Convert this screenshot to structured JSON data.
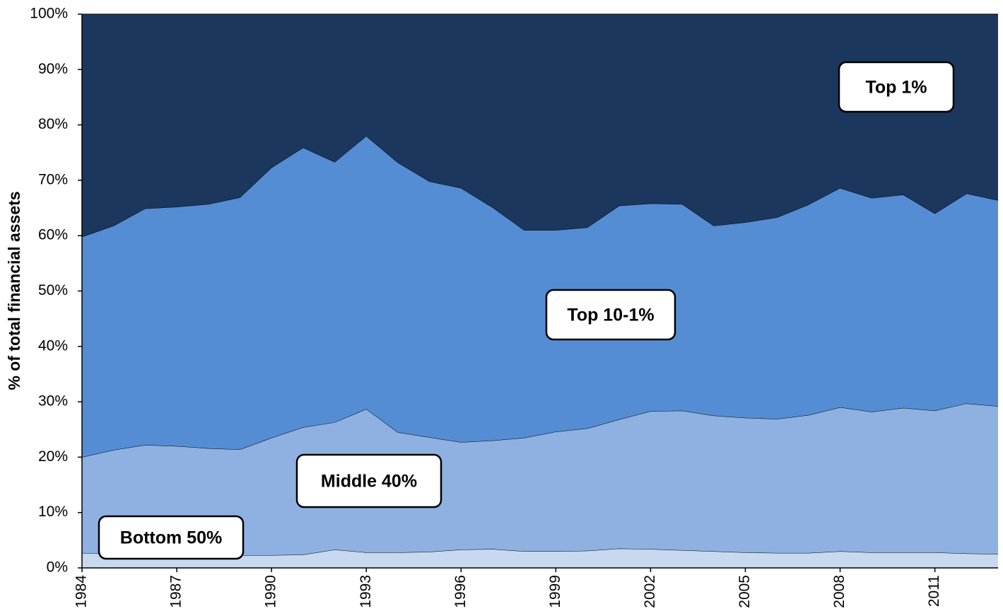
{
  "chart_data": {
    "type": "stacked_area",
    "y_label": "% of total financial assets",
    "x": [
      1984,
      1985,
      1986,
      1987,
      1988,
      1989,
      1990,
      1991,
      1992,
      1993,
      1994,
      1995,
      1996,
      1997,
      1998,
      1999,
      2000,
      2001,
      2002,
      2003,
      2004,
      2005,
      2006,
      2007,
      2008,
      2009,
      2010,
      2011,
      2012,
      2013
    ],
    "xlim": [
      1984,
      2013
    ],
    "xticks": [
      1984,
      1987,
      1990,
      1993,
      1996,
      1999,
      2002,
      2005,
      2008,
      2011
    ],
    "ylim": [
      0,
      100
    ],
    "yticks": [
      {
        "value": 0,
        "label": "0%"
      },
      {
        "value": 10,
        "label": "10%"
      },
      {
        "value": 20,
        "label": "20%"
      },
      {
        "value": 30,
        "label": "30%"
      },
      {
        "value": 40,
        "label": "40%"
      },
      {
        "value": 50,
        "label": "50%"
      },
      {
        "value": 60,
        "label": "60%"
      },
      {
        "value": 70,
        "label": "70%"
      },
      {
        "value": 80,
        "label": "80%"
      },
      {
        "value": 90,
        "label": "90%"
      },
      {
        "value": 100,
        "label": "100%"
      }
    ],
    "series": [
      {
        "name": "Bottom 50%",
        "color": "#c7d8ef",
        "values": [
          2.7,
          2.6,
          2.6,
          2.5,
          2.4,
          2.3,
          2.3,
          2.4,
          3.3,
          2.8,
          2.8,
          2.9,
          3.3,
          3.4,
          3.0,
          3.0,
          3.1,
          3.5,
          3.4,
          3.2,
          3.0,
          2.8,
          2.7,
          2.7,
          3.0,
          2.8,
          2.8,
          2.8,
          2.6,
          2.5
        ]
      },
      {
        "name": "Middle 40%",
        "color": "#8eb1e1",
        "values": [
          17.3,
          18.7,
          19.6,
          19.5,
          19.2,
          19.1,
          21.2,
          23.0,
          23.0,
          25.9,
          21.7,
          20.7,
          19.4,
          19.6,
          20.5,
          21.6,
          22.1,
          23.3,
          24.9,
          25.2,
          24.5,
          24.3,
          24.2,
          24.9,
          26.0,
          25.4,
          26.1,
          25.6,
          27.1,
          26.7
        ]
      },
      {
        "name": "Top 10-1%",
        "color": "#558dd4",
        "values": [
          39.8,
          40.5,
          42.7,
          43.2,
          44.1,
          45.5,
          48.8,
          50.5,
          47.0,
          49.3,
          48.7,
          46.2,
          45.9,
          42.1,
          37.5,
          36.4,
          36.3,
          38.6,
          37.5,
          37.3,
          34.3,
          35.3,
          36.4,
          38.0,
          39.6,
          38.6,
          38.5,
          35.6,
          37.9,
          37.2
        ]
      },
      {
        "name": "Top 1%",
        "color": "#1b375e",
        "values": [
          40.2,
          38.2,
          35.1,
          34.8,
          34.3,
          33.1,
          27.7,
          24.1,
          26.7,
          22.0,
          26.8,
          30.2,
          31.4,
          34.9,
          39.0,
          39.0,
          38.5,
          34.6,
          34.2,
          34.3,
          38.2,
          37.6,
          36.7,
          34.4,
          31.4,
          33.2,
          32.6,
          36.0,
          32.4,
          33.6
        ]
      }
    ]
  }
}
